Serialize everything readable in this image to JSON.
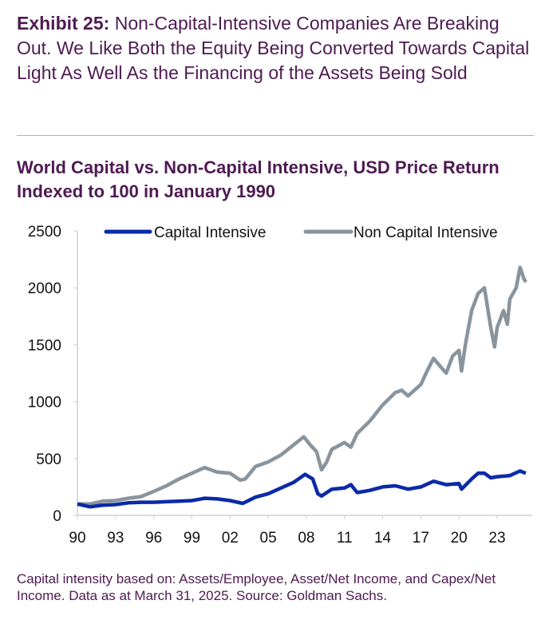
{
  "exhibit": {
    "label": "Exhibit 25:",
    "text": " Non-Capital-Intensive Companies Are Breaking Out. We Like Both the Equity Being Converted Towards Capital Light As Well As the Financing of the Assets Being Sold"
  },
  "footnote": "Capital intensity based on: Assets/Employee, Asset/Net Income, and Capex/Net Income. Data as at March 31, 2025. Source: Goldman Sachs.",
  "chart_data": {
    "type": "line",
    "title": "World Capital vs. Non-Capital Intensive, USD Price Return Indexed to 100 in January 1990",
    "xlabel": "",
    "ylabel": "",
    "ylim": [
      0,
      2500
    ],
    "xlim": [
      1990,
      2025.3
    ],
    "yticks": [
      0,
      500,
      1000,
      1500,
      2000,
      2500
    ],
    "xticks": [
      {
        "v": 1990,
        "l": "90"
      },
      {
        "v": 1993,
        "l": "93"
      },
      {
        "v": 1996,
        "l": "96"
      },
      {
        "v": 1999,
        "l": "99"
      },
      {
        "v": 2002,
        "l": "02"
      },
      {
        "v": 2005,
        "l": "05"
      },
      {
        "v": 2008,
        "l": "08"
      },
      {
        "v": 2011,
        "l": "11"
      },
      {
        "v": 2014,
        "l": "14"
      },
      {
        "v": 2017,
        "l": "17"
      },
      {
        "v": 2020,
        "l": "20"
      },
      {
        "v": 2023,
        "l": "23"
      }
    ],
    "legend": "top",
    "colors": {
      "capital": "#0a2aa8",
      "non_capital": "#8a949c",
      "axis": "#d0d0d0",
      "text": "#4e1a52"
    },
    "series": [
      {
        "name": "Capital Intensive",
        "x": [
          1990,
          1991,
          1992,
          1993,
          1994,
          1995,
          1996,
          1997,
          1998,
          1999,
          2000,
          2001,
          2002,
          2003,
          2004,
          2005,
          2006,
          2007,
          2007.9,
          2008.5,
          2008.9,
          2009.2,
          2010,
          2011,
          2011.5,
          2012,
          2013,
          2014,
          2015,
          2016,
          2017,
          2018,
          2019,
          2020,
          2020.2,
          2021,
          2021.5,
          2022,
          2022.5,
          2023,
          2024,
          2024.8,
          2025.25
        ],
        "y": [
          100,
          75,
          90,
          95,
          110,
          115,
          115,
          120,
          125,
          130,
          150,
          145,
          130,
          105,
          160,
          190,
          240,
          290,
          360,
          320,
          190,
          170,
          230,
          240,
          270,
          200,
          220,
          250,
          260,
          230,
          250,
          300,
          270,
          280,
          230,
          320,
          370,
          370,
          330,
          340,
          350,
          390,
          370
        ]
      },
      {
        "name": "Non Capital Intensive",
        "x": [
          1990,
          1991,
          1992,
          1993,
          1994,
          1995,
          1996,
          1997,
          1998,
          1999,
          2000,
          2000.5,
          2001,
          2002,
          2002.8,
          2003.2,
          2004,
          2005,
          2006,
          2007,
          2007.8,
          2008.3,
          2008.8,
          2009.2,
          2009.6,
          2010,
          2011,
          2011.5,
          2012,
          2013,
          2014,
          2015,
          2015.5,
          2016,
          2017,
          2017.5,
          2018,
          2018.6,
          2019,
          2019.5,
          2020,
          2020.2,
          2020.5,
          2021,
          2021.5,
          2022,
          2022.5,
          2022.8,
          2023,
          2023.5,
          2023.8,
          2024,
          2024.5,
          2024.8,
          2025.1,
          2025.25
        ],
        "y": [
          100,
          100,
          125,
          130,
          150,
          165,
          210,
          260,
          320,
          370,
          420,
          400,
          380,
          370,
          310,
          320,
          430,
          470,
          530,
          620,
          690,
          620,
          560,
          400,
          470,
          580,
          640,
          600,
          720,
          830,
          970,
          1080,
          1100,
          1050,
          1150,
          1270,
          1380,
          1300,
          1250,
          1400,
          1450,
          1270,
          1500,
          1800,
          1950,
          2000,
          1650,
          1480,
          1650,
          1800,
          1680,
          1900,
          2000,
          2180,
          2080,
          2050
        ]
      }
    ]
  }
}
